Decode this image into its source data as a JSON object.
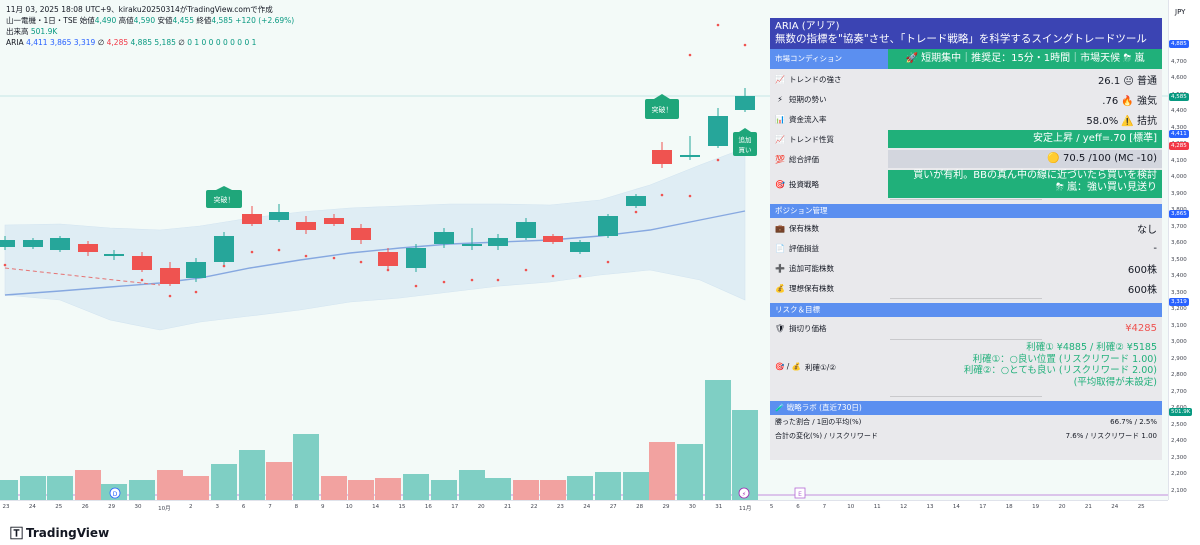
{
  "header": {
    "line1": "11月 03, 2025 18:08 UTC+9、kiraku20250314がTradingView.comで作成",
    "symbol": "山一電機・1日・TSE",
    "o_label": "始値",
    "o_val": "4,490",
    "h_label": "高値",
    "h_val": "4,590",
    "l_label": "安値",
    "l_val": "4,455",
    "c_label": "終値",
    "c_val": "4,585",
    "change": "+120 (+2.69%)",
    "vol_label": "出来高",
    "vol_val": "501.9K",
    "ind_name": "ARIA",
    "ind_v1": "4,411",
    "ind_v2": "3,865",
    "ind_v3": "3,319",
    "ind_sep": "∅",
    "ind_v4": "4,285",
    "ind_v5": "4,885",
    "ind_v6": "5,185",
    "ind_v7": "∅",
    "ind_zeros": "0 1 0 0 0 0 0 0 0 1"
  },
  "price_axis": {
    "currency": "JPY",
    "ticks": [
      "4,800",
      "4,700",
      "4,600",
      "4,500",
      "4,400",
      "4,300",
      "4,200",
      "4,100",
      "4,000",
      "3,900",
      "3,800",
      "3,700",
      "3,600",
      "3,500",
      "3,400",
      "3,300",
      "3,200",
      "3,100",
      "3,000",
      "2,900",
      "2,800",
      "2,700",
      "2,600",
      "2,500",
      "2,400",
      "2,300",
      "2,200",
      "2,100"
    ],
    "tags": [
      {
        "text": "4,885",
        "color": "#2962ff"
      },
      {
        "text": "4,585",
        "color": "#089981"
      },
      {
        "text": "4,411",
        "color": "#2962ff"
      },
      {
        "text": "4,285",
        "color": "#f23645"
      },
      {
        "text": "3,865",
        "color": "#2962ff"
      },
      {
        "text": "3,319",
        "color": "#2962ff"
      },
      {
        "text": "501.9K",
        "color": "#089981"
      }
    ]
  },
  "time_axis": {
    "ticks": [
      "23",
      "24",
      "25",
      "26",
      "29",
      "30",
      "10月",
      "2",
      "3",
      "6",
      "7",
      "8",
      "9",
      "10",
      "14",
      "15",
      "16",
      "17",
      "20",
      "21",
      "22",
      "23",
      "24",
      "27",
      "28",
      "29",
      "30",
      "31",
      "11月",
      "5",
      "6",
      "7",
      "10",
      "11",
      "12",
      "13",
      "14",
      "17",
      "18",
      "19",
      "20",
      "21",
      "24",
      "25"
    ]
  },
  "markers": {
    "breakout1": "突破！",
    "breakout2": "突破！",
    "add_buy": "追加\n買い",
    "d_marker": "D",
    "e_marker": "E"
  },
  "aria": {
    "title_line1": "ARIA (アリア)",
    "title_line2": "無数の指標を\"協奏\"させ、「トレード戦略」を科学するスイングトレードツール",
    "market": {
      "label": "市場コンディション",
      "banner": "🚀 短期集中｜推奨足：15分・1時間｜市場天候 ⛈ 嵐"
    },
    "rows": [
      {
        "icon": "📈",
        "label": "トレンドの強さ",
        "value": "26.1 😐 普通"
      },
      {
        "icon": "⚡",
        "label": "短期の勢い",
        "value": ".76 🔥 強気"
      },
      {
        "icon": "📊",
        "label": "資金流入率",
        "value": "58.0% ⚠️ 拮抗"
      },
      {
        "icon": "📈",
        "label": "トレンド性質",
        "value": "安定上昇 / yeff=.70 [標準]"
      },
      {
        "icon": "💯",
        "label": "総合評価",
        "value": "🟡 70.5 /100 (MC -10)"
      },
      {
        "icon": "🎯",
        "label": "投資戦略",
        "value": "買いが有利。BBの真ん中の線に近づいたら買いを検討\n⛈ 嵐：強い買い見送り"
      }
    ],
    "position": {
      "label": "ポジション管理",
      "rows": [
        {
          "icon": "💼",
          "label": "保有株数",
          "value": "なし"
        },
        {
          "icon": "📄",
          "label": "評価損益",
          "value": "-"
        },
        {
          "icon": "➕",
          "label": "追加可能株数",
          "value": "600株"
        },
        {
          "icon": "💰",
          "label": "理想保有株数",
          "value": "600株"
        }
      ]
    },
    "risk": {
      "label": "リスク＆目標",
      "stop_icon": "🛡",
      "stop_label": "損切り価格",
      "stop_value": "¥4285",
      "tp_icon": "🎯 / 💰",
      "tp_label": "利確①/②",
      "tp_lines": [
        "利確① ¥4885 / 利確② ¥5185",
        "利確①：○良い位置 (リスクリワード 1.00)",
        "利確②：○とても良い (リスクリワード 2.00)",
        "(平均取得が未設定)"
      ]
    },
    "lab": {
      "label": "🧪 戦略ラボ (直近730日)",
      "rows": [
        {
          "label": "勝った割合 / 1回の平均(%)",
          "value": "66.7% / 2.5%"
        },
        {
          "label": "合計の変化(%) / リスクリワード",
          "value": "7.6% / リスクリワード 1.00"
        }
      ]
    }
  },
  "footer": {
    "brand": "TradingView"
  },
  "colors": {
    "up": "#26a69a",
    "down": "#ef5350",
    "panel_title": "#3b44b3",
    "section": "#5b8ff0",
    "highlight": "#20b07a"
  }
}
